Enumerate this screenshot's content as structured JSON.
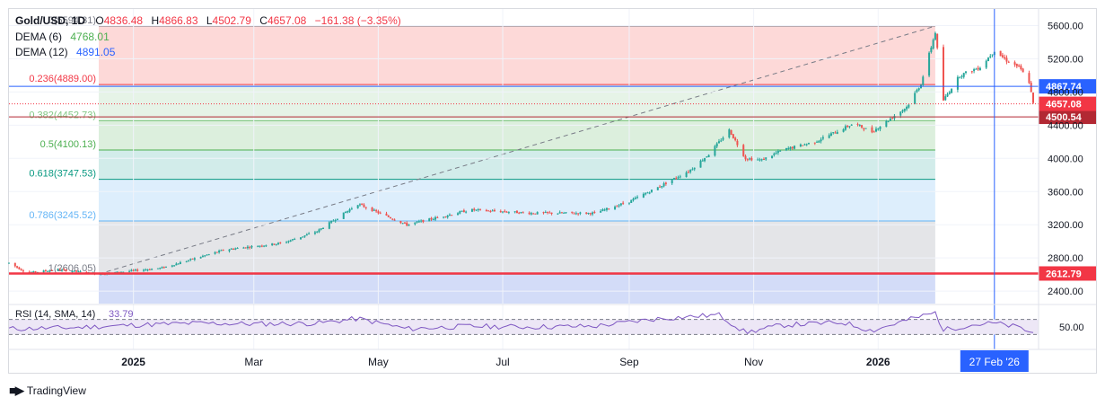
{
  "header": {
    "symbol": "Gold/USD, 1D",
    "open_label": "O",
    "open": "4836.48",
    "high_label": "H",
    "high": "4866.83",
    "low_label": "L",
    "low": "4502.79",
    "close_label": "C",
    "close": "4657.08",
    "change": "−161.38 (−3.35%)"
  },
  "legend": [
    {
      "name": "DEMA (6)",
      "value": "4768.01",
      "color": "#4caf50"
    },
    {
      "name": "DEMA (12)",
      "value": "4891.05",
      "color": "#2962ff"
    }
  ],
  "colors": {
    "up": "#26a69a",
    "down": "#ef5350",
    "rsi": "#7e57c2",
    "blue": "#2962ff"
  },
  "footer": {
    "brand": "TradingView",
    "logo": "tradingview-logo-icon"
  },
  "chart_data": {
    "type": "candlestick",
    "title": "Gold/USD, 1D",
    "y_axis": {
      "range": [
        2250,
        5800
      ],
      "ticks": [
        "5600.00",
        "5200.00",
        "4800.00",
        "4400.00",
        "4000.00",
        "3600.00",
        "3200.00",
        "2800.00",
        "2400.00"
      ],
      "tick_values": [
        5600,
        5200,
        4800,
        4400,
        4000,
        3600,
        3200,
        2800,
        2400
      ],
      "position": "right"
    },
    "x_axis": {
      "range": [
        "2024-11-01",
        "2026-03-18"
      ],
      "labels": [
        {
          "label": "2025",
          "date": "2025-01-01"
        },
        {
          "label": "Mar",
          "date": "2025-03-01"
        },
        {
          "label": "May",
          "date": "2025-05-01"
        },
        {
          "label": "Jul",
          "date": "2025-07-01"
        },
        {
          "label": "Sep",
          "date": "2025-09-01"
        },
        {
          "label": "Nov",
          "date": "2025-11-01"
        },
        {
          "label": "2026",
          "date": "2026-01-01"
        }
      ]
    },
    "price_path": [
      {
        "date": "2024-11-01",
        "price": 2740
      },
      {
        "date": "2024-11-10",
        "price": 2620
      },
      {
        "date": "2024-11-25",
        "price": 2660
      },
      {
        "date": "2024-12-15",
        "price": 2606
      },
      {
        "date": "2025-01-15",
        "price": 2680
      },
      {
        "date": "2025-02-15",
        "price": 2900
      },
      {
        "date": "2025-03-15",
        "price": 2980
      },
      {
        "date": "2025-04-01",
        "price": 3120
      },
      {
        "date": "2025-04-21",
        "price": 3450
      },
      {
        "date": "2025-05-15",
        "price": 3200
      },
      {
        "date": "2025-06-15",
        "price": 3380
      },
      {
        "date": "2025-07-15",
        "price": 3340
      },
      {
        "date": "2025-08-15",
        "price": 3340
      },
      {
        "date": "2025-09-01",
        "price": 3480
      },
      {
        "date": "2025-09-15",
        "price": 3650
      },
      {
        "date": "2025-10-01",
        "price": 3860
      },
      {
        "date": "2025-10-10",
        "price": 4050
      },
      {
        "date": "2025-10-20",
        "price": 4340
      },
      {
        "date": "2025-10-28",
        "price": 4000
      },
      {
        "date": "2025-11-05",
        "price": 3980
      },
      {
        "date": "2025-11-15",
        "price": 4100
      },
      {
        "date": "2025-12-01",
        "price": 4200
      },
      {
        "date": "2025-12-20",
        "price": 4420
      },
      {
        "date": "2025-12-29",
        "price": 4320
      },
      {
        "date": "2026-01-15",
        "price": 4620
      },
      {
        "date": "2026-01-22",
        "price": 4900
      },
      {
        "date": "2026-01-29",
        "price": 5520
      },
      {
        "date": "2026-02-02",
        "price": 4700
      },
      {
        "date": "2026-02-10",
        "price": 5000
      },
      {
        "date": "2026-02-20",
        "price": 5100
      },
      {
        "date": "2026-02-27",
        "price": 5300
      },
      {
        "date": "2026-03-05",
        "price": 5180
      },
      {
        "date": "2026-03-11",
        "price": 5100
      },
      {
        "date": "2026-03-16",
        "price": 4920
      },
      {
        "date": "2026-03-18",
        "price": 4657
      }
    ],
    "fibonacci": {
      "from": {
        "date": "2024-12-15",
        "price": 2606.05
      },
      "to": {
        "date": "2026-01-29",
        "price": 5594.31
      },
      "levels": [
        {
          "ratio": "0",
          "price": "5594.31",
          "value": 5594.31,
          "label_color": "#787b86",
          "line_color": "#787b86",
          "fill": "#fdd9d8"
        },
        {
          "ratio": "0.236",
          "price": "4889.00",
          "value": 4889.0,
          "label_color": "#f23645",
          "line_color": "#f23645",
          "fill": "#fdd9d8"
        },
        {
          "ratio": "0.382",
          "price": "4452.73",
          "value": 4452.73,
          "label_color": "#81c784",
          "line_color": "#81c784",
          "fill": "#e6f3e7"
        },
        {
          "ratio": "0.5",
          "price": "4100.13",
          "value": 4100.13,
          "label_color": "#4caf50",
          "line_color": "#4caf50",
          "fill": "#dcefdd"
        },
        {
          "ratio": "0.618",
          "price": "3747.53",
          "value": 3747.53,
          "label_color": "#089981",
          "line_color": "#089981",
          "fill": "#d2ecea"
        },
        {
          "ratio": "0.786",
          "price": "3245.52",
          "value": 3245.52,
          "label_color": "#64b5f6",
          "line_color": "#64b5f6",
          "fill": "#ddeefc"
        },
        {
          "ratio": "1",
          "price": "2606.05",
          "value": 2606.05,
          "label_color": "#787b86",
          "line_color": "#787b86",
          "fill": "#e4e5e8"
        }
      ],
      "extension_fill": "#d3dcf8"
    },
    "horizontal_lines": [
      {
        "price": 4867.74,
        "label": "4867.74",
        "color": "#2962ff"
      },
      {
        "price": 4500.54,
        "label": "4500.54",
        "color": "#b22833"
      },
      {
        "price": 2612.79,
        "label": "2612.79",
        "color": "#f23645"
      }
    ],
    "price_markers": [
      {
        "price": 4657.08,
        "label": "4657.08",
        "color": "#f23645"
      }
    ],
    "crosshair": {
      "date": "2026-02-27",
      "label": "27 Feb '26",
      "color": "#2962ff"
    },
    "rsi": {
      "label": "RSI (14, SMA, 14)",
      "value": "33.79",
      "tick": "50.00",
      "range": [
        0,
        100
      ],
      "bands": [
        30,
        70
      ],
      "series": [
        {
          "date": "2024-11-01",
          "value": 45
        },
        {
          "date": "2024-12-01",
          "value": 48
        },
        {
          "date": "2025-01-01",
          "value": 55
        },
        {
          "date": "2025-02-01",
          "value": 60
        },
        {
          "date": "2025-03-01",
          "value": 58
        },
        {
          "date": "2025-04-01",
          "value": 60
        },
        {
          "date": "2025-04-21",
          "value": 72
        },
        {
          "date": "2025-05-15",
          "value": 45
        },
        {
          "date": "2025-06-15",
          "value": 52
        },
        {
          "date": "2025-07-15",
          "value": 50
        },
        {
          "date": "2025-08-15",
          "value": 52
        },
        {
          "date": "2025-09-15",
          "value": 72
        },
        {
          "date": "2025-10-15",
          "value": 82
        },
        {
          "date": "2025-10-28",
          "value": 35
        },
        {
          "date": "2025-11-15",
          "value": 55
        },
        {
          "date": "2025-12-15",
          "value": 62
        },
        {
          "date": "2025-12-29",
          "value": 40
        },
        {
          "date": "2026-01-15",
          "value": 68
        },
        {
          "date": "2026-01-29",
          "value": 88
        },
        {
          "date": "2026-02-02",
          "value": 42
        },
        {
          "date": "2026-02-15",
          "value": 55
        },
        {
          "date": "2026-02-27",
          "value": 60
        },
        {
          "date": "2026-03-10",
          "value": 50
        },
        {
          "date": "2026-03-18",
          "value": 34
        }
      ]
    }
  }
}
